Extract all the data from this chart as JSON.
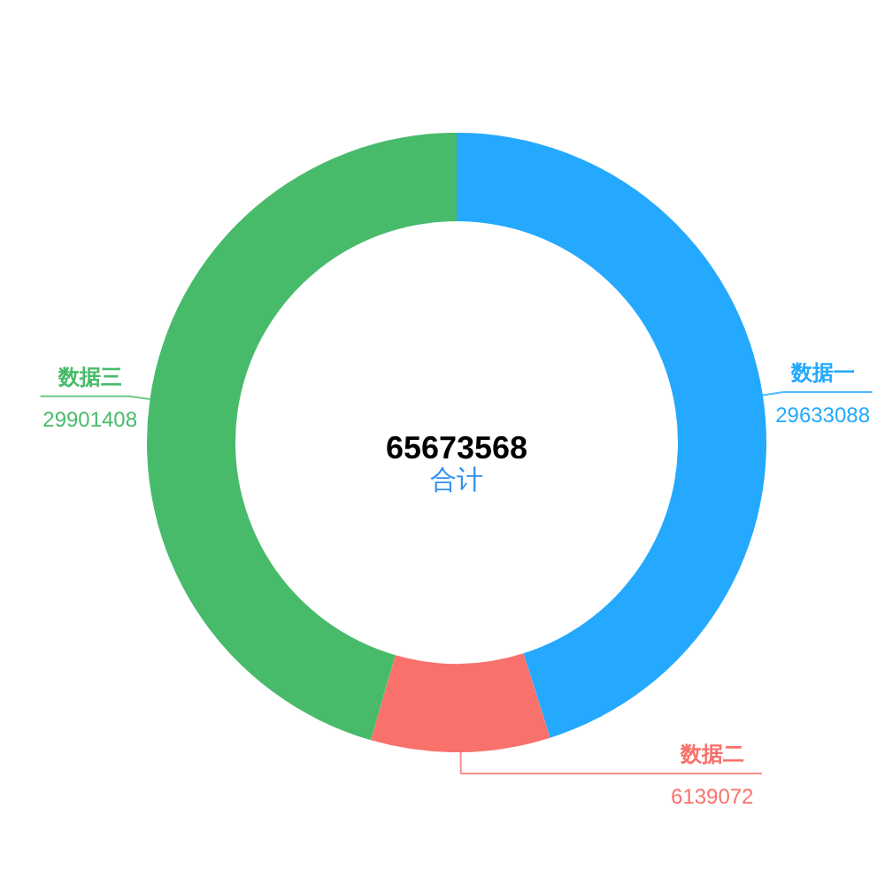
{
  "chart_data": {
    "type": "donut",
    "categories": [
      "数据一",
      "数据二",
      "数据三"
    ],
    "values": [
      29633088,
      6139072,
      29901408
    ],
    "colors": [
      "#24a9fe",
      "#f9716b",
      "#48bb6a"
    ],
    "data_labels": true,
    "annotations": [
      "65673568",
      "合计"
    ]
  }
}
